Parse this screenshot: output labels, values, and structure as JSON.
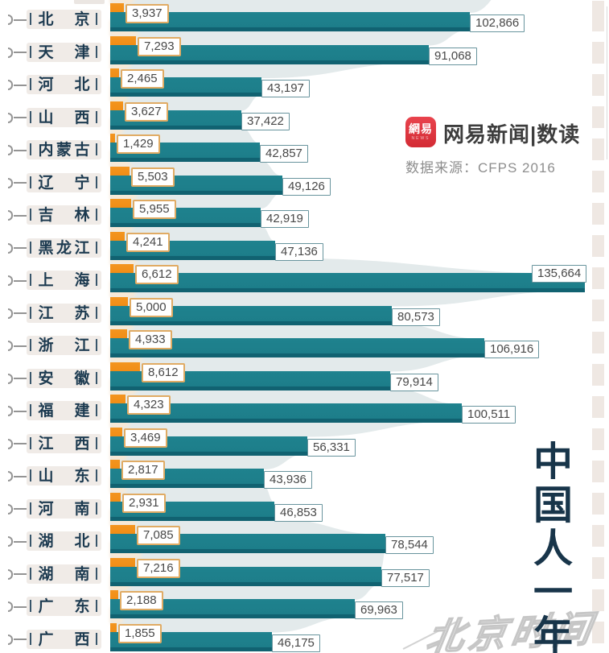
{
  "logo": {
    "icon_label": "網易",
    "icon_sub": "NEWS",
    "title": "网易新闻|数读",
    "source_label": "数据来源：CFPS 2016"
  },
  "side_title": "中国人一年",
  "watermark": "北京时间",
  "chart_data": {
    "type": "bar",
    "orientation": "horizontal",
    "value_format": "thousands-comma",
    "max_value": 135664,
    "categories": [
      "北京",
      "天津",
      "河北",
      "山西",
      "内蒙古",
      "辽宁",
      "吉林",
      "黑龙江",
      "上海",
      "江苏",
      "浙江",
      "安徽",
      "福建",
      "江西",
      "山东",
      "河南",
      "湖北",
      "湖南",
      "广东",
      "广西"
    ],
    "series": [
      {
        "name": "orange_small_values",
        "color": "#f08a12",
        "values": [
          3937,
          7293,
          2465,
          3627,
          1429,
          5503,
          5955,
          4241,
          6612,
          5000,
          4933,
          8612,
          4323,
          3469,
          2817,
          2931,
          7085,
          7216,
          2188,
          1855
        ]
      },
      {
        "name": "teal_large_values",
        "color": "#1d7f8b",
        "values": [
          102866,
          91068,
          43197,
          37422,
          42857,
          49126,
          42919,
          47136,
          135664,
          80573,
          106916,
          79914,
          100511,
          56331,
          43936,
          46853,
          78544,
          77517,
          69963,
          46175
        ]
      }
    ],
    "colors": {
      "orange": "#f08a12",
      "teal": "#1d7f8b",
      "teal_dark": "#116271",
      "funnel_teal": "#e3eaeb",
      "funnel_orange": "#f7e9d6",
      "label_text": "#1c3a50",
      "province_box_bg": "#f0ebe7"
    },
    "legend": false,
    "grid": false
  }
}
